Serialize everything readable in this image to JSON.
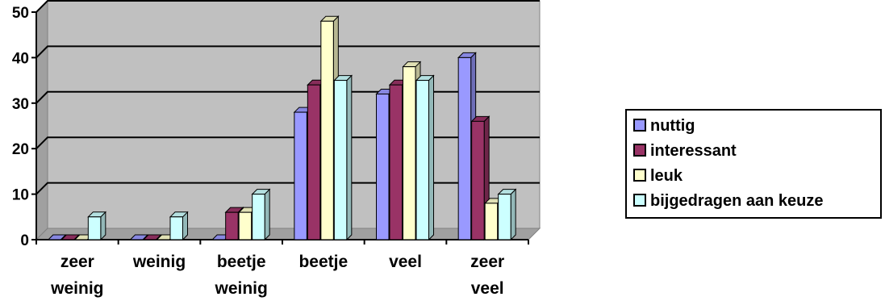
{
  "chart_data": {
    "type": "bar",
    "title": "",
    "xlabel": "",
    "ylabel": "",
    "ylim": [
      0,
      50
    ],
    "yticks": [
      0,
      10,
      20,
      30,
      40,
      50
    ],
    "grid": true,
    "legend_position": "right",
    "style": "3d-clustered-column",
    "categories": [
      "zeer weinig",
      "weinig",
      "beetje weinig",
      "beetje",
      "veel",
      "zeer veel"
    ],
    "series": [
      {
        "name": "nuttig",
        "color": "#9999ff",
        "values": [
          0,
          0,
          0,
          28,
          32,
          40
        ]
      },
      {
        "name": "interessant",
        "color": "#993366",
        "values": [
          0,
          0,
          6,
          34,
          34,
          26
        ]
      },
      {
        "name": "leuk",
        "color": "#ffffcc",
        "values": [
          0,
          0,
          6,
          48,
          38,
          8
        ]
      },
      {
        "name": "bijgedragen aan keuze",
        "color": "#ccffff",
        "values": [
          5,
          5,
          10,
          35,
          35,
          10
        ]
      }
    ],
    "plot_background": "#c0c0c0"
  }
}
